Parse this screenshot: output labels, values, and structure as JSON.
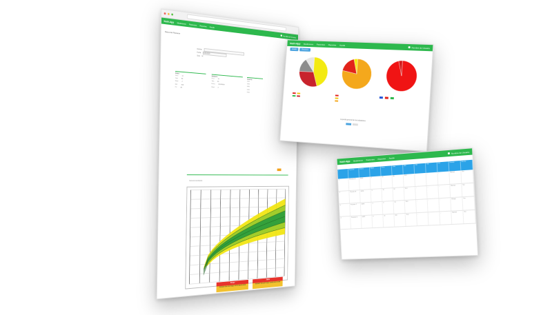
{
  "main_window": {
    "nav": {
      "brand": "Nutri-App",
      "items": [
        "Mediciones",
        "Pacientes",
        "Reportes",
        "Ayuda"
      ],
      "user": "Nombre de Usuario"
    },
    "page_title": "Datos del Paciente",
    "save_label": "Guardar",
    "form": {
      "labels": [
        "Nombre",
        "Fecha",
        "Sexo"
      ],
      "values": [
        "",
        "01/01/2019",
        "M"
      ]
    },
    "panels": [
      {
        "title": "Datos",
        "rows": [
          [
            "Peso",
            "12"
          ],
          [
            "Talla",
            "85"
          ],
          [
            "Edad",
            "2"
          ],
          [
            "IMC",
            "16.6"
          ],
          [
            "PC",
            "46"
          ]
        ]
      },
      {
        "title": "Medición",
        "rows": [
          [
            "Peso",
            "12"
          ],
          [
            "Talla",
            "85"
          ],
          [
            "Fecha",
            "01/01/2019"
          ],
          [
            "Edad",
            "2"
          ]
        ]
      },
      {
        "title": "Historial",
        "rows": [
          [
            "01/01"
          ],
          [
            "02/01"
          ],
          [
            "03/01"
          ],
          [
            "04/01"
          ],
          [
            "05/01"
          ]
        ]
      }
    ],
    "chart_title": "Curva de crecimiento",
    "alerts": [
      {
        "title": "Riesgo",
        "text": "Indicador fuera del rango normal para la edad"
      },
      {
        "title": "Alerta",
        "text": "Indicador fuera del rango normal para la edad"
      }
    ]
  },
  "growth_chart": {
    "band_colors": {
      "outer": "#f1e614",
      "mid": "#9ccb2c",
      "inner": "#2e9e3c",
      "line": "#1b5e20"
    },
    "x_lines": 10,
    "y_lines": 10
  },
  "pies_window": {
    "nav": {
      "brand": "Nutri-App",
      "items": [
        "Mediciones",
        "Pacientes",
        "Reportes",
        "Ayuda"
      ],
      "user": "Nombre de Usuario"
    },
    "tabs": [
      "Estado",
      "Resumen"
    ],
    "footer": "Leyenda general de los indicadores",
    "chart_data": [
      {
        "type": "pie",
        "title": "",
        "values": [
          45,
          30,
          15,
          10
        ],
        "colors": [
          "#f3ea12",
          "#c8232c",
          "#8c8c8c",
          "#e6e6e6"
        ],
        "legend": [
          {
            "name": "",
            "color": "#e2231a"
          },
          {
            "name": "",
            "color": "#f3c512"
          },
          {
            "name": "",
            "color": "#2db84d"
          },
          {
            "name": "",
            "color": "#c8232c"
          }
        ]
      },
      {
        "type": "pie",
        "title": "",
        "values": [
          78,
          18,
          4
        ],
        "colors": [
          "#f4a81c",
          "#e2231a",
          "#f3ea12"
        ],
        "legend": [
          {
            "name": "",
            "color": "#e2231a"
          },
          {
            "name": "",
            "color": "#f3c512"
          },
          {
            "name": "",
            "color": "#f4a81c"
          }
        ]
      },
      {
        "type": "pie",
        "title": "",
        "values": [
          96,
          4
        ],
        "colors": [
          "#f01414",
          "#d21a1a"
        ],
        "legend": [
          {
            "name": "",
            "color": "#2354d6"
          },
          {
            "name": "",
            "color": "#e2231a"
          },
          {
            "name": "",
            "color": "#2db84d"
          }
        ]
      }
    ]
  },
  "table_window": {
    "nav": {
      "brand": "Nutri-App",
      "items": [
        "Mediciones",
        "Pacientes",
        "Reportes",
        "Ayuda"
      ],
      "user": "Nombre de Usuario"
    },
    "headers": [
      "#",
      "Paciente",
      "Fecha",
      "Edad",
      "Peso",
      "Talla",
      "IMC",
      "P/E",
      "T/E",
      "P/T",
      "Estado",
      "Acción"
    ],
    "rows": [
      [
        "1",
        "Paciente A",
        "01/01",
        "2",
        "12",
        "85",
        "16.6",
        "-",
        "-",
        "-",
        "Normal",
        "Ver"
      ],
      [
        "2",
        "Paciente B",
        "02/01",
        "3",
        "13",
        "92",
        "15.4",
        "-",
        "-",
        "-",
        "Normal",
        "Ver"
      ],
      [
        "3",
        "Paciente C",
        "03/01",
        "1",
        "9",
        "74",
        "16.4",
        "-",
        "-",
        "-",
        "Riesgo",
        "Ver"
      ],
      [
        "4",
        "Paciente D",
        "04/01",
        "4",
        "15",
        "100",
        "15.0",
        "-",
        "-",
        "-",
        "Normal",
        "Ver"
      ]
    ]
  }
}
